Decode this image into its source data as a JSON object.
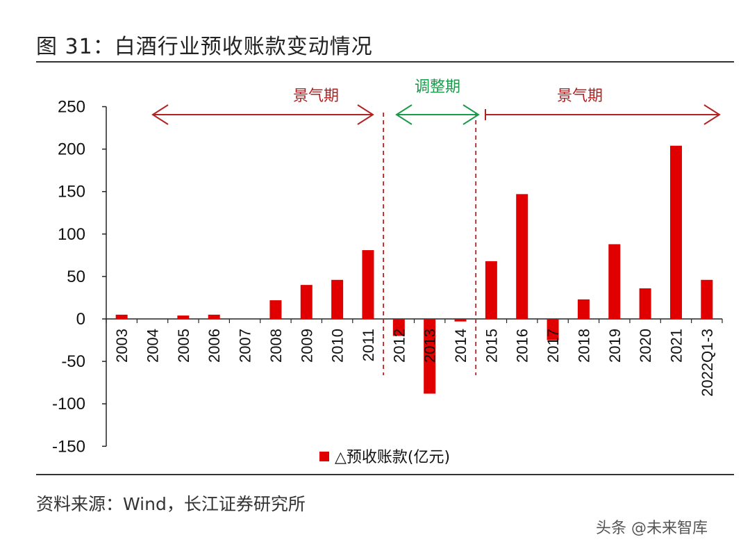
{
  "figure": {
    "title": "图 31：白酒行业预收账款变动情况",
    "source": "资料来源：Wind，长江证券研究所",
    "watermark": "头条 @未来智库"
  },
  "chart_data": {
    "type": "bar",
    "categories": [
      "2003",
      "2004",
      "2005",
      "2006",
      "2007",
      "2008",
      "2009",
      "2010",
      "2011",
      "2012",
      "2013",
      "2014",
      "2015",
      "2016",
      "2017",
      "2018",
      "2019",
      "2020",
      "2021",
      "2022Q1-3"
    ],
    "series": [
      {
        "name": "△预收账款(亿元)",
        "color": "#e00000",
        "values": [
          5,
          0,
          4,
          5,
          0,
          22,
          40,
          46,
          81,
          -20,
          -88,
          -3,
          68,
          147,
          -25,
          23,
          88,
          36,
          204,
          46
        ]
      }
    ],
    "ylim": [
      -150,
      250
    ],
    "yticks": [
      250,
      200,
      150,
      100,
      50,
      0,
      -50,
      -100,
      -150
    ],
    "legend": {
      "position": "bottom",
      "label": "△预收账款(亿元)"
    },
    "periods": [
      {
        "label": "景气期",
        "color": "#b22222",
        "from_category": "2004",
        "to_category": "2011",
        "arrow": "both"
      },
      {
        "label": "调整期",
        "color": "#1a9a4a",
        "from_category": "2012",
        "to_category": "2014",
        "arrow": "both"
      },
      {
        "label": "景气期",
        "color": "#b22222",
        "from_category": "2015",
        "to_category": "2022Q1-3",
        "arrow": "right"
      }
    ],
    "dividers": [
      {
        "between": [
          "2011",
          "2012"
        ],
        "color": "#b22222"
      },
      {
        "between": [
          "2014",
          "2015"
        ],
        "color": "#b22222"
      }
    ]
  }
}
